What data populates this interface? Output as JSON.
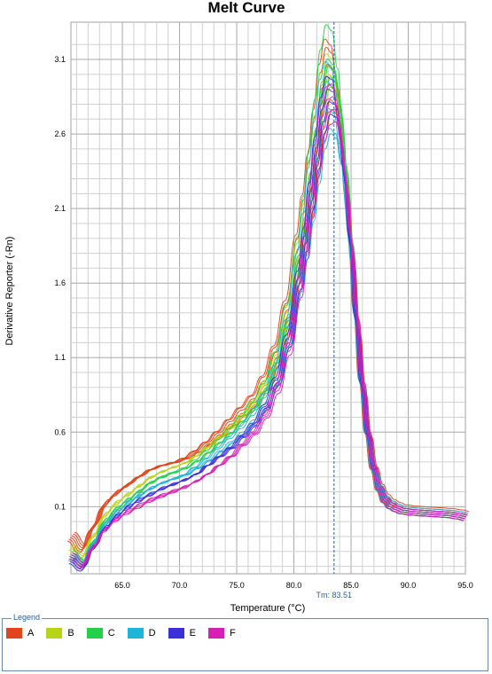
{
  "chart_data": {
    "type": "line",
    "title": "Melt Curve",
    "xlabel": "Temperature (°C)",
    "ylabel": "Derivative Reporter (-Rn)",
    "xlim": [
      60.5,
      95
    ],
    "ylim": [
      -0.35,
      3.35
    ],
    "xticks": [
      65.0,
      70.0,
      75.0,
      80.0,
      85.0,
      90.0,
      95.0
    ],
    "xtick_labels": [
      "65.0",
      "70.0",
      "75.0",
      "80.0",
      "85.0",
      "90.0",
      "95.0"
    ],
    "yticks": [
      0.1,
      0.6,
      1.1,
      1.6,
      2.1,
      2.6,
      3.1
    ],
    "ytick_labels": [
      "0.1",
      "0.6",
      "1.1",
      "1.6",
      "2.1",
      "2.6",
      "3.1"
    ],
    "grid": true,
    "tm": 83.51,
    "tm_label": "Tm: 83.51",
    "x_grid": [
      60.5,
      61.5,
      62.5,
      63.5,
      64.5,
      65.5,
      66.5,
      67.5,
      68.5,
      69.5,
      70.5,
      71.5,
      72.5,
      73.5,
      74.5,
      75.5,
      76.5,
      77.5,
      78.5,
      79.5,
      80.5,
      81.0,
      81.5,
      82.0,
      82.5,
      83.0,
      83.5,
      84.0,
      84.5,
      85.0,
      85.5,
      86.0,
      86.5,
      87.0,
      87.5,
      88.0,
      88.5,
      89.0,
      89.5,
      90.5,
      91.5,
      92.5,
      93.5,
      94.5,
      95.0
    ],
    "series": [
      {
        "name": "A",
        "color": "#e0451b",
        "peaks": [
          3.25,
          3.18,
          3.05,
          2.9,
          2.78,
          2.7
        ],
        "values": [
          -0.12,
          -0.2,
          -0.05,
          0.1,
          0.18,
          0.24,
          0.3,
          0.35,
          0.38,
          0.4,
          0.43,
          0.48,
          0.54,
          0.61,
          0.69,
          0.77,
          0.85,
          0.98,
          1.18,
          1.48,
          1.92,
          2.18,
          2.45,
          2.75,
          3.05,
          3.22,
          3.18,
          2.95,
          2.52,
          1.98,
          1.42,
          0.95,
          0.6,
          0.36,
          0.22,
          0.14,
          0.1,
          0.08,
          0.065,
          0.055,
          0.05,
          0.045,
          0.04,
          0.03,
          0.02
        ]
      },
      {
        "name": "B",
        "color": "#b8d418",
        "peaks": [
          3.15,
          3.05,
          2.98,
          2.88
        ],
        "values": [
          -0.18,
          -0.24,
          -0.1,
          0.04,
          0.12,
          0.18,
          0.24,
          0.3,
          0.34,
          0.37,
          0.4,
          0.45,
          0.51,
          0.58,
          0.65,
          0.73,
          0.82,
          0.95,
          1.15,
          1.45,
          1.88,
          2.14,
          2.42,
          2.72,
          3.02,
          3.15,
          3.12,
          2.9,
          2.48,
          1.96,
          1.4,
          0.94,
          0.6,
          0.36,
          0.22,
          0.14,
          0.1,
          0.08,
          0.065,
          0.055,
          0.05,
          0.045,
          0.04,
          0.03,
          0.02
        ]
      },
      {
        "name": "C",
        "color": "#22d04a",
        "peaks": [
          3.35,
          3.1,
          3.05,
          2.95
        ],
        "values": [
          -0.22,
          -0.28,
          -0.14,
          0.0,
          0.08,
          0.14,
          0.2,
          0.26,
          0.3,
          0.33,
          0.36,
          0.41,
          0.47,
          0.54,
          0.61,
          0.69,
          0.78,
          0.9,
          1.1,
          1.4,
          1.84,
          2.1,
          2.4,
          2.72,
          3.04,
          3.2,
          3.16,
          2.92,
          2.5,
          1.98,
          1.42,
          0.95,
          0.6,
          0.36,
          0.22,
          0.14,
          0.1,
          0.08,
          0.065,
          0.055,
          0.05,
          0.045,
          0.04,
          0.03,
          0.02
        ]
      },
      {
        "name": "D",
        "color": "#1fb4d8",
        "peaks": [
          3.1,
          2.95,
          2.75,
          2.6,
          2.55
        ],
        "values": [
          -0.25,
          -0.3,
          -0.16,
          -0.03,
          0.05,
          0.11,
          0.17,
          0.22,
          0.26,
          0.29,
          0.32,
          0.37,
          0.43,
          0.5,
          0.57,
          0.64,
          0.73,
          0.85,
          1.04,
          1.34,
          1.78,
          2.04,
          2.34,
          2.64,
          2.92,
          3.04,
          3.0,
          2.78,
          2.38,
          1.9,
          1.38,
          0.93,
          0.59,
          0.36,
          0.22,
          0.14,
          0.1,
          0.08,
          0.065,
          0.055,
          0.05,
          0.045,
          0.04,
          0.03,
          0.02
        ]
      },
      {
        "name": "E",
        "color": "#3a2fd8",
        "peaks": [
          3.0,
          2.9,
          2.8,
          2.7
        ],
        "values": [
          -0.27,
          -0.32,
          -0.18,
          -0.05,
          0.03,
          0.09,
          0.14,
          0.18,
          0.22,
          0.25,
          0.28,
          0.32,
          0.38,
          0.44,
          0.5,
          0.58,
          0.66,
          0.78,
          0.96,
          1.24,
          1.66,
          1.94,
          2.24,
          2.54,
          2.8,
          2.94,
          2.92,
          2.72,
          2.34,
          1.88,
          1.36,
          0.92,
          0.59,
          0.36,
          0.22,
          0.14,
          0.1,
          0.08,
          0.065,
          0.055,
          0.05,
          0.045,
          0.04,
          0.03,
          0.02
        ]
      },
      {
        "name": "F",
        "color": "#d81fb4",
        "peaks": [
          2.95,
          2.85,
          2.75,
          2.65
        ],
        "values": [
          -0.24,
          -0.3,
          -0.17,
          -0.06,
          0.01,
          0.06,
          0.1,
          0.14,
          0.17,
          0.2,
          0.23,
          0.27,
          0.32,
          0.38,
          0.44,
          0.52,
          0.6,
          0.72,
          0.9,
          1.18,
          1.6,
          1.88,
          2.18,
          2.48,
          2.74,
          2.86,
          2.88,
          2.72,
          2.38,
          1.94,
          1.44,
          0.98,
          0.62,
          0.37,
          0.22,
          0.14,
          0.1,
          0.08,
          0.065,
          0.055,
          0.05,
          0.045,
          0.04,
          0.03,
          0.02
        ]
      }
    ]
  },
  "legend": {
    "title": "Legend",
    "items": [
      {
        "label": "A",
        "color": "#e0451b"
      },
      {
        "label": "B",
        "color": "#b8d418"
      },
      {
        "label": "C",
        "color": "#22d04a"
      },
      {
        "label": "D",
        "color": "#1fb4d8"
      },
      {
        "label": "E",
        "color": "#3a2fd8"
      },
      {
        "label": "F",
        "color": "#d81fb4"
      }
    ]
  }
}
